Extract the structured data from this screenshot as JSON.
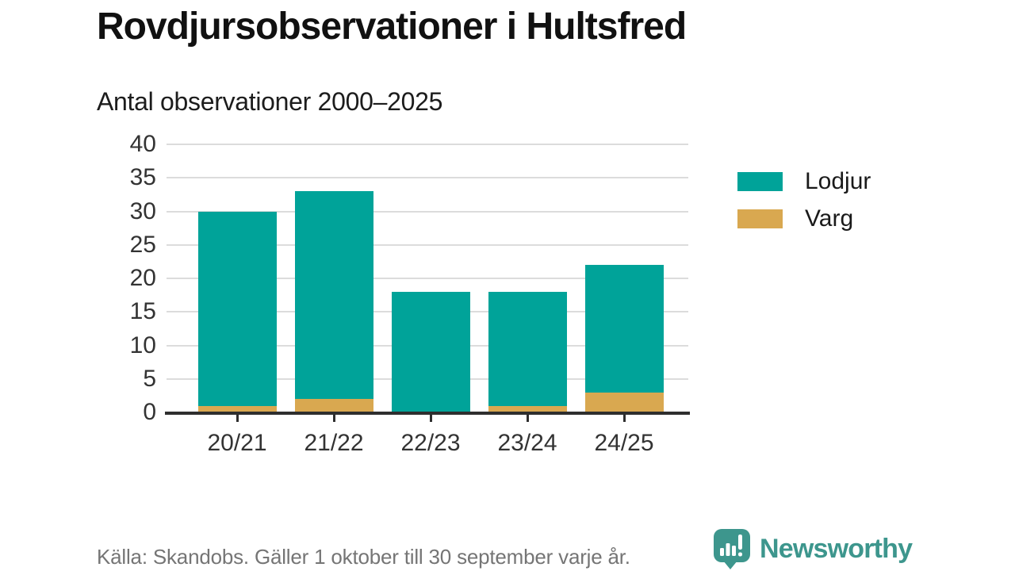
{
  "header": {
    "title": "Rovdjursobservationer i Hultsfred",
    "subtitle": "Antal observationer 2000–2025"
  },
  "chart_data": {
    "type": "bar",
    "stacked": true,
    "title": "Rovdjursobservationer i Hultsfred",
    "subtitle": "Antal observationer 2000–2025",
    "categories": [
      "20/21",
      "21/22",
      "22/23",
      "23/24",
      "24/25"
    ],
    "series": [
      {
        "name": "Lodjur",
        "color": "#00a399",
        "values": [
          29,
          31,
          18,
          17,
          19
        ]
      },
      {
        "name": "Varg",
        "color": "#d9a850",
        "values": [
          1,
          2,
          0,
          1,
          3
        ]
      }
    ],
    "stack_bottom_to_top": [
      "Varg",
      "Lodjur"
    ],
    "stacked_totals": [
      30,
      33,
      18,
      18,
      22
    ],
    "xlabel": "",
    "ylabel": "",
    "y_axis": {
      "min": 0,
      "max": 40,
      "step": 5,
      "ticks": [
        0,
        5,
        10,
        15,
        20,
        25,
        30,
        35,
        40
      ]
    },
    "grid": true,
    "legend_position": "right"
  },
  "legend": {
    "items": [
      {
        "label": "Lodjur",
        "color": "#00a399"
      },
      {
        "label": "Varg",
        "color": "#d9a850"
      }
    ]
  },
  "footer": {
    "source": "Källa: Skandobs. Gäller 1 oktober till 30 september varje år.",
    "brand": "Newsworthy"
  },
  "colors": {
    "accent_teal": "#00a399",
    "accent_gold": "#d9a850",
    "brand_teal": "#3d968d",
    "gridline": "#dcdcdc",
    "axis": "#2e2e2e"
  }
}
